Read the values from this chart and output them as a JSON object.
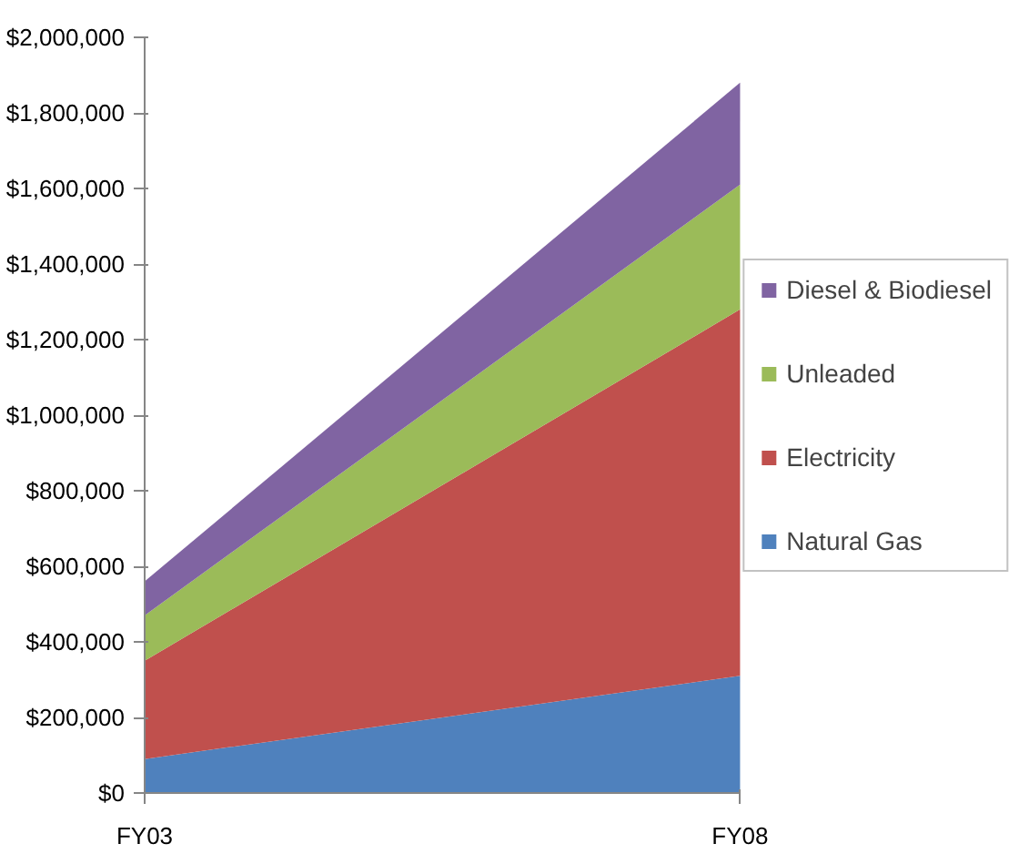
{
  "chart_data": {
    "type": "area",
    "stacked": true,
    "categories": [
      "FY03",
      "FY08"
    ],
    "series": [
      {
        "name": "Natural Gas",
        "color": "#4f81bd",
        "values": [
          90000,
          310000
        ]
      },
      {
        "name": "Electricity",
        "color": "#c0504d",
        "values": [
          260000,
          970000
        ]
      },
      {
        "name": "Unleaded",
        "color": "#9bbb59",
        "values": [
          120000,
          330000
        ]
      },
      {
        "name": "Diesel & Biodiesel",
        "color": "#8064a2",
        "values": [
          90000,
          270000
        ]
      }
    ],
    "ylim": [
      0,
      2000000
    ],
    "yticks": [
      {
        "value": 0,
        "label": "$0"
      },
      {
        "value": 200000,
        "label": "$200,000"
      },
      {
        "value": 400000,
        "label": "$400,000"
      },
      {
        "value": 600000,
        "label": "$600,000"
      },
      {
        "value": 800000,
        "label": "$800,000"
      },
      {
        "value": 1000000,
        "label": "$1,000,000"
      },
      {
        "value": 1200000,
        "label": "$1,200,000"
      },
      {
        "value": 1400000,
        "label": "$1,400,000"
      },
      {
        "value": 1600000,
        "label": "$1,600,000"
      },
      {
        "value": 1800000,
        "label": "$1,800,000"
      },
      {
        "value": 2000000,
        "label": "$2,000,000"
      }
    ],
    "grid": false,
    "legend": "right"
  }
}
